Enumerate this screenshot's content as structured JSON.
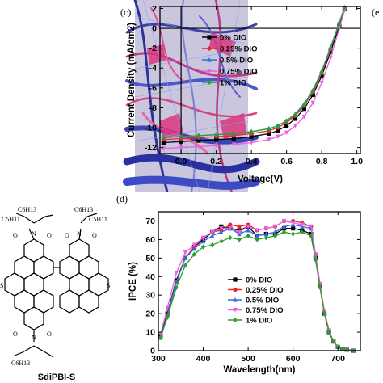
{
  "panel_labels": {
    "c": "(c)",
    "d": "(d)",
    "e_partial": "(e"
  },
  "molecule": {
    "name": "SdiPBI-S",
    "chain_top": "C6H13",
    "chain_top_left": "C5H11",
    "chain_top_right": "C5H11",
    "chain_bottom": "C6H13",
    "heteroatom_S": "S",
    "heteroatom_N": "N",
    "heteroatom_O": "O"
  },
  "series_colors": [
    "#000000",
    "#e8262a",
    "#2f6fe0",
    "#e85fe0",
    "#2aa02a"
  ],
  "series_markers": [
    "square",
    "circle",
    "triangle",
    "triangle-down",
    "diamond"
  ],
  "chart_data": [
    {
      "type": "line",
      "panel": "(c)",
      "xlabel": "Voltage(V)",
      "ylabel": "Current Density (mA/cm2)",
      "xlim": [
        -0.12,
        1.02
      ],
      "ylim": [
        -12.6,
        2.2
      ],
      "xticks": [
        "0.0",
        "0.2",
        "0.4",
        "0.6",
        "0.8",
        "1.0"
      ],
      "xtick_values": [
        0.0,
        0.2,
        0.4,
        0.6,
        0.8,
        1.0
      ],
      "yticks": [
        "2",
        "0",
        "-2",
        "-4",
        "-6",
        "-8",
        "-10",
        "-12"
      ],
      "ytick_values": [
        2,
        0,
        -2,
        -4,
        -6,
        -8,
        -10,
        -12
      ],
      "legend_position": "upper-left",
      "x": [
        -0.1,
        0.0,
        0.1,
        0.2,
        0.3,
        0.4,
        0.5,
        0.55,
        0.6,
        0.65,
        0.7,
        0.75,
        0.8,
        0.85,
        0.9,
        0.93
      ],
      "series": [
        {
          "name": "0% DIO",
          "values": [
            -11.5,
            -11.4,
            -11.3,
            -11.2,
            -11.1,
            -10.9,
            -10.6,
            -10.3,
            -9.8,
            -9.1,
            -8.1,
            -6.7,
            -4.8,
            -2.4,
            0.2,
            2.0
          ]
        },
        {
          "name": "0.25% DIO",
          "values": [
            -11.2,
            -11.1,
            -11.0,
            -10.9,
            -10.8,
            -10.6,
            -10.3,
            -10.0,
            -9.5,
            -8.8,
            -7.8,
            -6.4,
            -4.5,
            -2.1,
            0.5,
            2.1
          ]
        },
        {
          "name": "0.5% DIO",
          "values": [
            -11.0,
            -10.9,
            -10.8,
            -10.7,
            -10.6,
            -10.4,
            -10.1,
            -9.8,
            -9.3,
            -8.6,
            -7.6,
            -6.2,
            -4.3,
            -1.9,
            0.6,
            2.1
          ]
        },
        {
          "name": "0.75% DIO",
          "values": [
            -12.1,
            -12.0,
            -11.9,
            -11.8,
            -11.7,
            -11.5,
            -11.2,
            -10.9,
            -10.5,
            -9.8,
            -8.9,
            -7.5,
            -5.5,
            -3.0,
            0.0,
            1.8
          ]
        },
        {
          "name": "1% DIO",
          "values": [
            -11.0,
            -10.9,
            -10.8,
            -10.7,
            -10.6,
            -10.4,
            -10.1,
            -9.8,
            -9.3,
            -8.7,
            -7.7,
            -6.3,
            -4.4,
            -2.0,
            0.5,
            2.1
          ]
        }
      ]
    },
    {
      "type": "line",
      "panel": "(d)",
      "xlabel": "Wavelength(nm)",
      "ylabel": "IPCE (%)",
      "xlim": [
        300,
        750
      ],
      "ylim": [
        0,
        75
      ],
      "xticks": [
        "300",
        "400",
        "500",
        "600",
        "700"
      ],
      "xtick_values": [
        300,
        400,
        500,
        600,
        700
      ],
      "yticks": [
        "0",
        "10",
        "20",
        "30",
        "40",
        "50",
        "60",
        "70"
      ],
      "ytick_values": [
        0,
        10,
        20,
        30,
        40,
        50,
        60,
        70
      ],
      "legend_position": "lower-center",
      "x": [
        305,
        320,
        340,
        360,
        380,
        400,
        420,
        440,
        460,
        480,
        500,
        520,
        540,
        560,
        580,
        600,
        620,
        640,
        650,
        660,
        670,
        680,
        690,
        700,
        710,
        720,
        735
      ],
      "series": [
        {
          "name": "0% DIO",
          "values": [
            8,
            20,
            38,
            50,
            56,
            60,
            64,
            67,
            66,
            65,
            67,
            62,
            63,
            63,
            66,
            66,
            65,
            63,
            50,
            35,
            20,
            10,
            5,
            2,
            1,
            0.5,
            0
          ]
        },
        {
          "name": "0.25% DIO",
          "values": [
            7,
            19,
            37,
            50,
            56,
            61,
            64,
            65,
            68,
            67,
            68,
            65,
            66,
            67,
            70,
            70,
            69,
            67,
            52,
            36,
            21,
            11,
            5,
            2,
            1,
            0.5,
            0
          ]
        },
        {
          "name": "0.5% DIO",
          "values": [
            7,
            19,
            37,
            50,
            55,
            59,
            62,
            64,
            66,
            63,
            65,
            62,
            63,
            64,
            67,
            68,
            67,
            66,
            51,
            35,
            20,
            10,
            5,
            2,
            1,
            0.5,
            0
          ]
        },
        {
          "name": "0.75% DIO",
          "values": [
            9,
            23,
            42,
            53,
            57,
            61,
            64,
            66,
            66,
            64,
            67,
            65,
            66,
            67,
            70,
            69,
            68,
            67,
            52,
            36,
            21,
            11,
            5,
            2,
            1,
            0.5,
            0
          ]
        },
        {
          "name": "1% DIO",
          "values": [
            7,
            18,
            34,
            46,
            52,
            56,
            57,
            59,
            61,
            60,
            62,
            60,
            61,
            62,
            64,
            63,
            64,
            62,
            49,
            34,
            20,
            10,
            5,
            2,
            1,
            0.5,
            0
          ]
        }
      ]
    }
  ]
}
